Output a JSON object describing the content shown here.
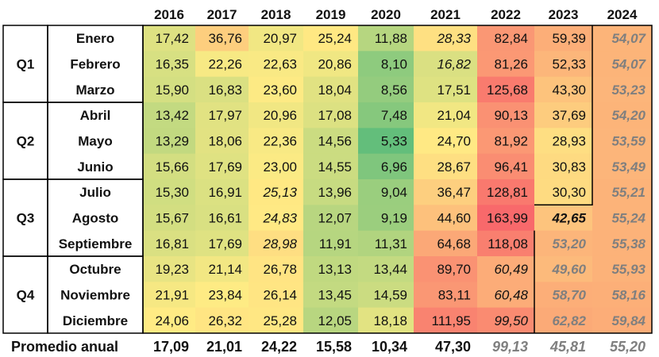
{
  "chart_data": {
    "type": "heatmap",
    "years": [
      "2016",
      "2017",
      "2018",
      "2019",
      "2020",
      "2021",
      "2022",
      "2023",
      "2024"
    ],
    "quarters": [
      {
        "label": "Q1",
        "months": [
          "Enero",
          "Febrero",
          "Marzo"
        ]
      },
      {
        "label": "Q2",
        "months": [
          "Abril",
          "Mayo",
          "Junio"
        ]
      },
      {
        "label": "Q3",
        "months": [
          "Julio",
          "Agosto",
          "Septiembre"
        ]
      },
      {
        "label": "Q4",
        "months": [
          "Octubre",
          "Noviembre",
          "Diciembre"
        ]
      }
    ],
    "rows": [
      {
        "month": "Enero",
        "values": [
          "17,42",
          "36,76",
          "20,97",
          "25,24",
          "11,88",
          "28,33",
          "82,84",
          "59,39",
          "54,07"
        ],
        "nums": [
          17.42,
          36.76,
          20.97,
          25.24,
          11.88,
          28.33,
          82.84,
          59.39,
          54.07
        ],
        "styles": [
          "n",
          "n",
          "n",
          "n",
          "n",
          "i",
          "n",
          "n",
          "f"
        ]
      },
      {
        "month": "Febrero",
        "values": [
          "16,35",
          "22,26",
          "22,63",
          "20,86",
          "8,10",
          "16,82",
          "81,26",
          "52,33",
          "54,07"
        ],
        "nums": [
          16.35,
          22.26,
          22.63,
          20.86,
          8.1,
          16.82,
          81.26,
          52.33,
          54.07
        ],
        "styles": [
          "n",
          "n",
          "n",
          "n",
          "n",
          "i",
          "n",
          "n",
          "f"
        ]
      },
      {
        "month": "Marzo",
        "values": [
          "15,90",
          "16,83",
          "23,60",
          "18,04",
          "8,56",
          "17,51",
          "125,68",
          "43,30",
          "53,23"
        ],
        "nums": [
          15.9,
          16.83,
          23.6,
          18.04,
          8.56,
          17.51,
          125.68,
          43.3,
          53.23
        ],
        "styles": [
          "n",
          "n",
          "n",
          "n",
          "n",
          "n",
          "n",
          "n",
          "f"
        ]
      },
      {
        "month": "Abril",
        "values": [
          "13,42",
          "17,97",
          "20,96",
          "17,08",
          "7,48",
          "21,04",
          "90,13",
          "37,69",
          "54,20"
        ],
        "nums": [
          13.42,
          17.97,
          20.96,
          17.08,
          7.48,
          21.04,
          90.13,
          37.69,
          54.2
        ],
        "styles": [
          "n",
          "n",
          "n",
          "n",
          "n",
          "n",
          "n",
          "n",
          "f"
        ]
      },
      {
        "month": "Mayo",
        "values": [
          "13,29",
          "18,06",
          "22,36",
          "14,56",
          "5,33",
          "24,70",
          "81,92",
          "28,93",
          "53,59"
        ],
        "nums": [
          13.29,
          18.06,
          22.36,
          14.56,
          5.33,
          24.7,
          81.92,
          28.93,
          53.59
        ],
        "styles": [
          "n",
          "n",
          "n",
          "n",
          "n",
          "n",
          "n",
          "n",
          "f"
        ]
      },
      {
        "month": "Junio",
        "values": [
          "15,66",
          "17,69",
          "23,00",
          "14,55",
          "6,96",
          "28,67",
          "96,41",
          "30,83",
          "53,49"
        ],
        "nums": [
          15.66,
          17.69,
          23.0,
          14.55,
          6.96,
          28.67,
          96.41,
          30.83,
          53.49
        ],
        "styles": [
          "n",
          "n",
          "n",
          "n",
          "n",
          "n",
          "n",
          "n",
          "f"
        ]
      },
      {
        "month": "Julio",
        "values": [
          "15,30",
          "16,91",
          "25,13",
          "13,96",
          "9,04",
          "36,47",
          "128,81",
          "30,30",
          "55,21"
        ],
        "nums": [
          15.3,
          16.91,
          25.13,
          13.96,
          9.04,
          36.47,
          128.81,
          30.3,
          55.21
        ],
        "styles": [
          "n",
          "n",
          "i",
          "n",
          "n",
          "n",
          "n",
          "n",
          "f"
        ]
      },
      {
        "month": "Agosto",
        "values": [
          "15,67",
          "16,61",
          "24,83",
          "12,07",
          "9,19",
          "44,60",
          "163,99",
          "42,65",
          "55,24"
        ],
        "nums": [
          15.67,
          16.61,
          24.83,
          12.07,
          9.19,
          44.6,
          163.99,
          42.65,
          55.24
        ],
        "styles": [
          "n",
          "n",
          "i",
          "n",
          "n",
          "n",
          "n",
          "bi",
          "f"
        ]
      },
      {
        "month": "Septiembre",
        "values": [
          "16,81",
          "17,69",
          "28,98",
          "11,91",
          "11,31",
          "64,68",
          "118,08",
          "53,20",
          "55,38"
        ],
        "nums": [
          16.81,
          17.69,
          28.98,
          11.91,
          11.31,
          64.68,
          118.08,
          53.2,
          55.38
        ],
        "styles": [
          "n",
          "n",
          "i",
          "n",
          "n",
          "n",
          "n",
          "f",
          "f"
        ]
      },
      {
        "month": "Octubre",
        "values": [
          "19,23",
          "21,14",
          "26,78",
          "13,13",
          "13,44",
          "89,70",
          "60,49",
          "49,60",
          "55,93"
        ],
        "nums": [
          19.23,
          21.14,
          26.78,
          13.13,
          13.44,
          89.7,
          60.49,
          49.6,
          55.93
        ],
        "styles": [
          "n",
          "n",
          "n",
          "n",
          "n",
          "n",
          "i",
          "f",
          "f"
        ]
      },
      {
        "month": "Noviembre",
        "values": [
          "21,91",
          "23,84",
          "26,14",
          "13,45",
          "14,59",
          "83,11",
          "60,48",
          "58,70",
          "58,16"
        ],
        "nums": [
          21.91,
          23.84,
          26.14,
          13.45,
          14.59,
          83.11,
          60.48,
          58.7,
          58.16
        ],
        "styles": [
          "n",
          "n",
          "n",
          "n",
          "n",
          "n",
          "i",
          "f",
          "f"
        ]
      },
      {
        "month": "Diciembre",
        "values": [
          "24,06",
          "26,32",
          "25,28",
          "12,05",
          "18,18",
          "111,95",
          "99,50",
          "62,82",
          "59,84"
        ],
        "nums": [
          24.06,
          26.32,
          25.28,
          12.05,
          18.18,
          111.95,
          99.5,
          62.82,
          59.84
        ],
        "styles": [
          "n",
          "n",
          "n",
          "n",
          "n",
          "n",
          "i",
          "f",
          "f"
        ]
      }
    ],
    "average": {
      "label": "Promedio anual",
      "values": [
        "17,09",
        "21,01",
        "24,22",
        "15,58",
        "10,34",
        "47,30",
        "99,13",
        "45,81",
        "55,20"
      ],
      "styles": [
        "n",
        "n",
        "n",
        "n",
        "n",
        "n",
        "f",
        "f",
        "f"
      ]
    },
    "color_scale": {
      "low": "#63be7b",
      "mid": "#ffeb84",
      "high": "#f8696b"
    }
  }
}
